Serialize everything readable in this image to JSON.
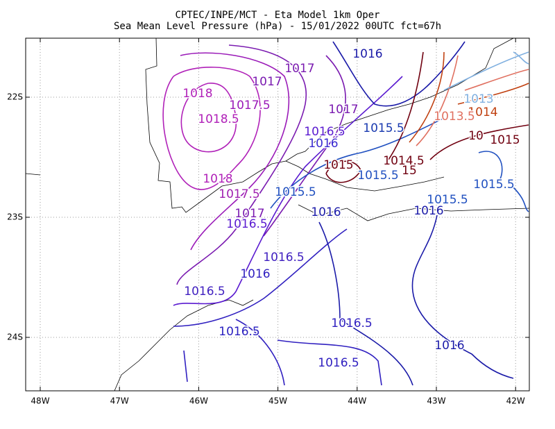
{
  "header": {
    "line1": "CPTEC/INPE/MCT -  Eta Model 1km Oper",
    "line2": "Sea Mean Level Pressure (hPa) - 15/01/2022 00UTC fct=67h"
  },
  "axes": {
    "x_labels": [
      "48W",
      "47W",
      "46W",
      "45W",
      "44W",
      "43W",
      "42W"
    ],
    "y_labels": [
      "22S",
      "23S",
      "24S"
    ]
  },
  "contour_labels": [
    "1016",
    "1017",
    "1017",
    "1018",
    "1017.5",
    "1018.5",
    "1017",
    "1016.5",
    "1016",
    "1015.5",
    "1013",
    "1014",
    "1013.5",
    "1015",
    "10",
    "1015",
    "1014.5",
    "15",
    "1015.5",
    "1015.5",
    "1015.5",
    "1018",
    "1017.5",
    "1015.5",
    "1016",
    "1016",
    "1017",
    "1016.5",
    "1016.5",
    "1016",
    "1016.5",
    "1016.5",
    "1016.5",
    "1016.5",
    "1016"
  ]
}
